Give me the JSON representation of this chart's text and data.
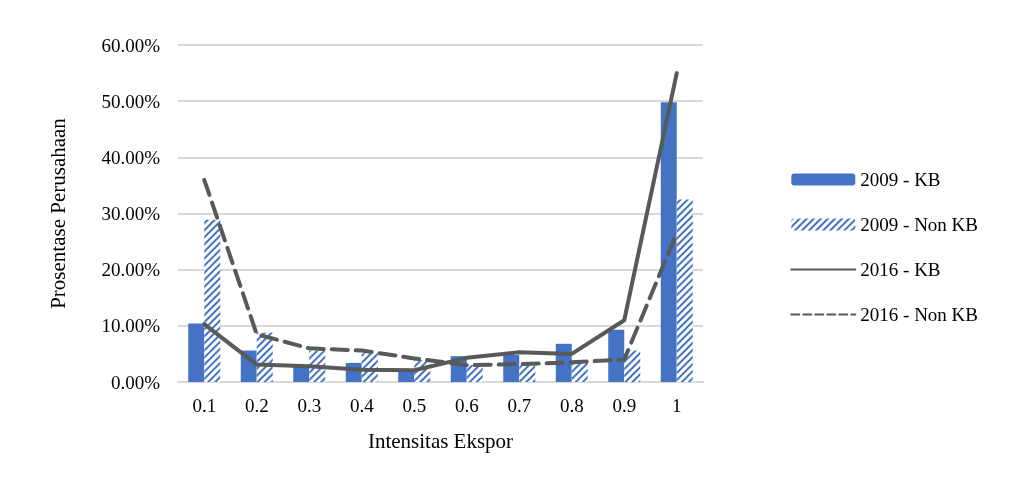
{
  "chart_data": {
    "type": "bar",
    "xlabel": "Intensitas Ekspor",
    "ylabel": "Prosentase Perusahaan",
    "categories": [
      "0.1",
      "0.2",
      "0.3",
      "0.4",
      "0.5",
      "0.6",
      "0.7",
      "0.8",
      "0.9",
      "1"
    ],
    "series": [
      {
        "name": "2009 - KB",
        "color": "#4472c4",
        "values": [
          10.4,
          5.6,
          2.9,
          3.4,
          2.0,
          4.6,
          4.8,
          6.8,
          9.3,
          49.8
        ]
      },
      {
        "name": "2009 - Non KB",
        "color": "#4472c4",
        "values": [
          28.9,
          8.8,
          5.6,
          5.1,
          3.9,
          3.0,
          3.0,
          3.9,
          5.6,
          32.5
        ]
      },
      {
        "name": "2016 - KB",
        "type": "line",
        "color": "#595959",
        "line_style": "solid",
        "values": [
          10.3,
          3.1,
          2.8,
          2.2,
          2.1,
          4.3,
          5.3,
          5.0,
          11.0,
          55.0
        ]
      },
      {
        "name": "2016 - Non KB",
        "type": "line",
        "color": "#595959",
        "line_style": "dashed",
        "values": [
          36.0,
          8.5,
          6.0,
          5.6,
          4.2,
          3.0,
          3.2,
          3.5,
          4.0,
          26.5
        ]
      }
    ],
    "ylim": [
      0,
      60
    ],
    "yticks": [
      {
        "value": 0,
        "label": "0.00%"
      },
      {
        "value": 10,
        "label": "10.00%"
      },
      {
        "value": 20,
        "label": "20.00%"
      },
      {
        "value": 30,
        "label": "30.00%"
      },
      {
        "value": 40,
        "label": "40.00%"
      },
      {
        "value": 50,
        "label": "50.00%"
      },
      {
        "value": 60,
        "label": "60.00%"
      }
    ],
    "grid": "y",
    "legend": "right",
    "marker": "none"
  }
}
